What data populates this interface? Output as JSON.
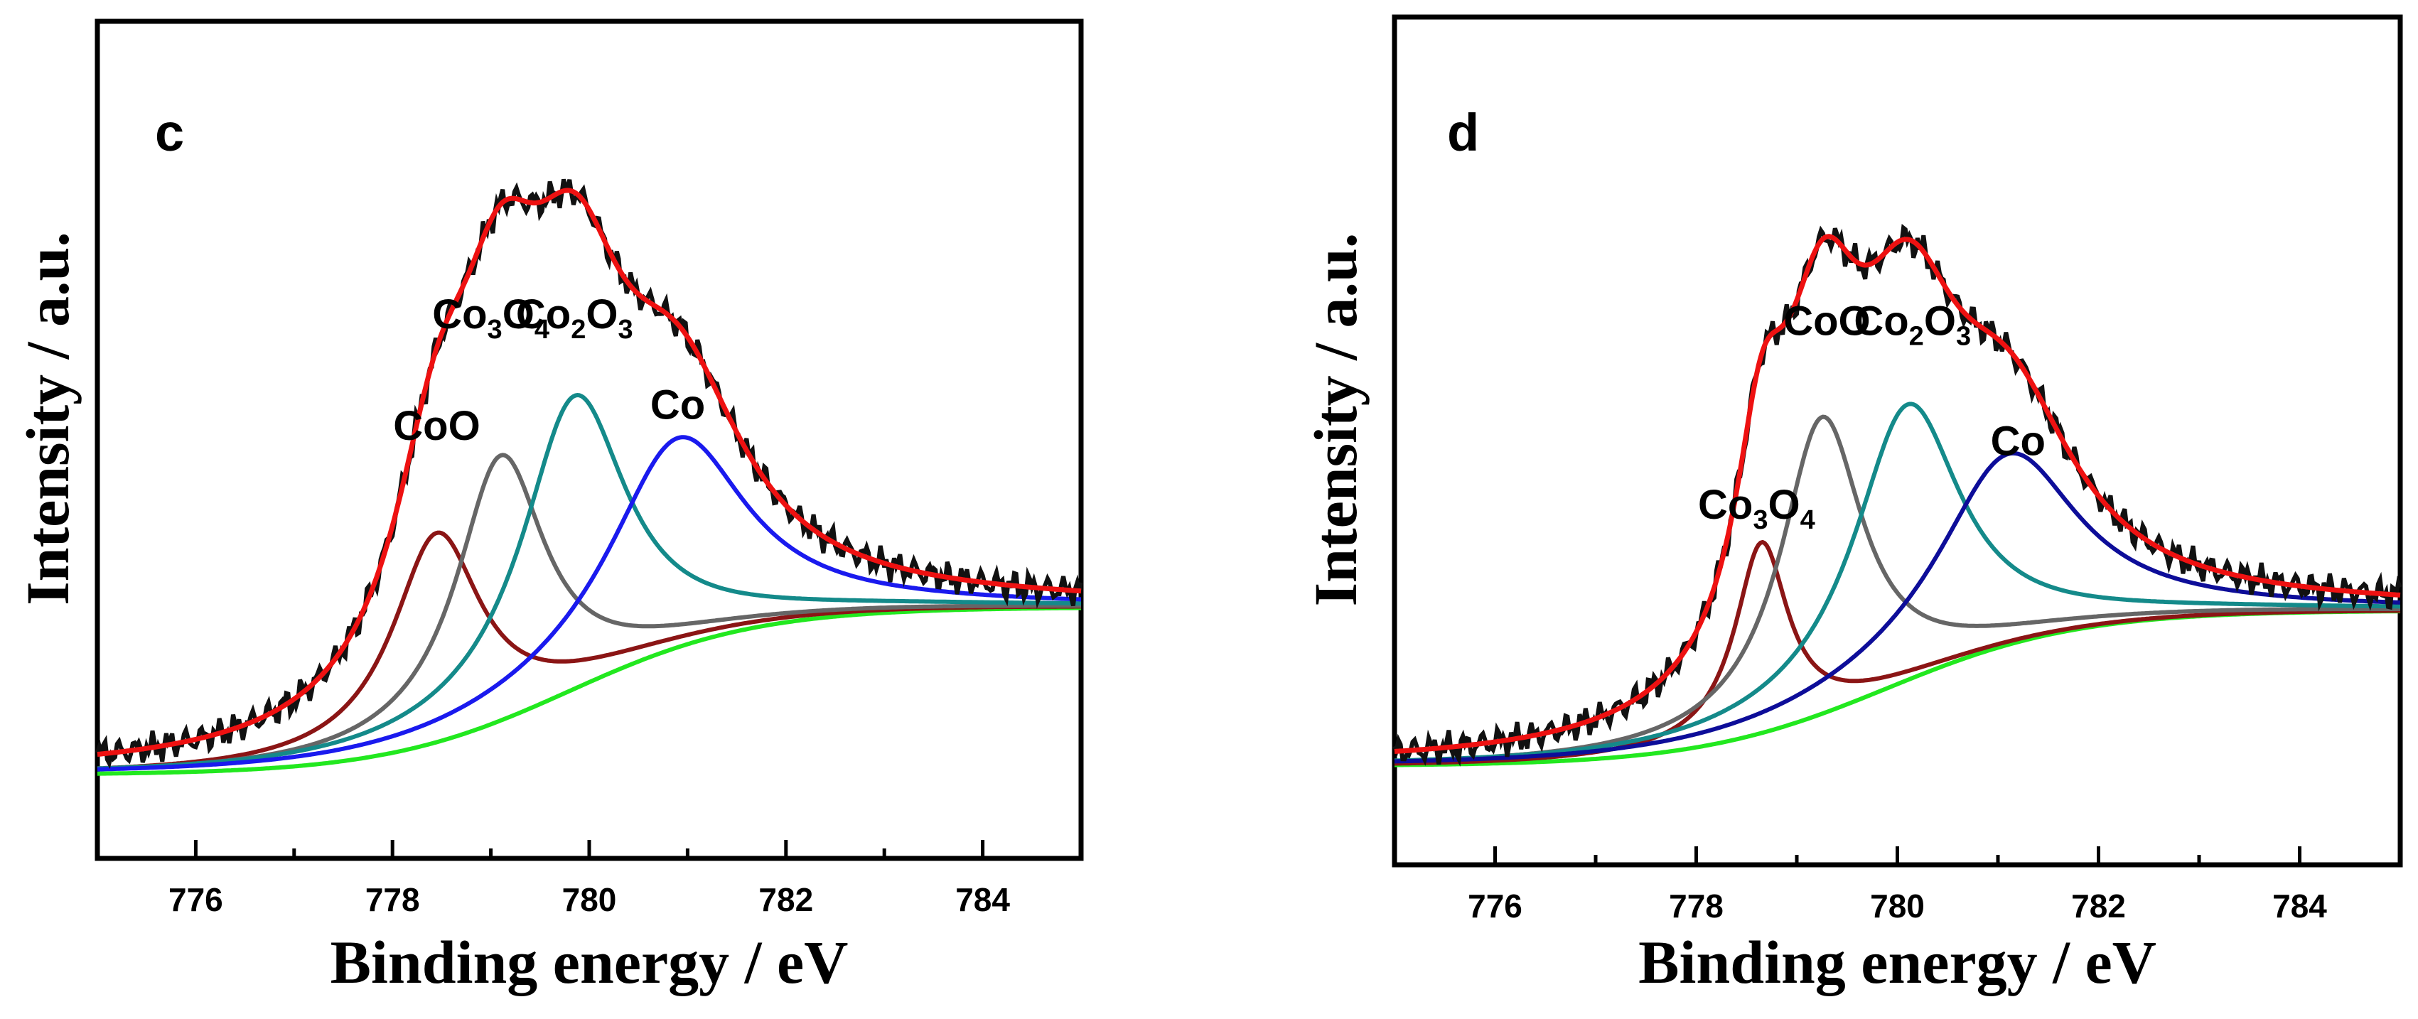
{
  "chart_data": [
    {
      "type": "line",
      "panel_label": "c",
      "xlabel": "Binding energy / eV",
      "ylabel": "Intensity / a.u.",
      "xlim": [
        775,
        785
      ],
      "ylim": [
        -0.12,
        1.08
      ],
      "x_ticks": [
        "776",
        "778",
        "780",
        "782",
        "784"
      ],
      "x_tick_values": [
        776,
        778,
        780,
        782,
        784
      ],
      "baseline": {
        "name": "background",
        "color": "#22e81f",
        "low": 0.0,
        "high": 0.24,
        "center": 779.8,
        "width": 0.95
      },
      "components": [
        {
          "label": "CoO",
          "center": 778.45,
          "height": 0.3,
          "width": 0.55,
          "color": "#8b1515",
          "label_x": 778.45,
          "label_y": 0.48
        },
        {
          "label": "Co3O4",
          "label_main": "Co",
          "label_sub1": "3",
          "label_mid": "O",
          "label_sub2": "4",
          "center": 779.1,
          "height": 0.38,
          "width": 0.55,
          "color": "#666666",
          "label_x": 779.0,
          "label_y": 0.64
        },
        {
          "label": "Co2O3",
          "label_main": "Co",
          "label_sub1": "2",
          "label_mid": "O",
          "label_sub2": "3",
          "center": 779.85,
          "height": 0.42,
          "width": 0.65,
          "color": "#148a8a",
          "label_x": 779.85,
          "label_y": 0.64
        },
        {
          "label": "Co",
          "center": 780.9,
          "height": 0.3,
          "width": 0.85,
          "color": "#1a1aee",
          "label_x": 780.9,
          "label_y": 0.51
        }
      ],
      "experimental": {
        "name": "experimental",
        "color": "#111111"
      },
      "fit": {
        "name": "fitted envelope",
        "color": "#ee1111"
      }
    },
    {
      "type": "line",
      "panel_label": "d",
      "xlabel": "Binding energy / eV",
      "ylabel": "Intensity / a.u.",
      "xlim": [
        775,
        785
      ],
      "ylim": [
        -0.14,
        1.06
      ],
      "x_ticks": [
        "776",
        "778",
        "780",
        "782",
        "784"
      ],
      "x_tick_values": [
        776,
        778,
        780,
        782,
        784
      ],
      "baseline": {
        "name": "background",
        "color": "#22e81f",
        "low": 0.0,
        "high": 0.22,
        "center": 779.9,
        "width": 0.95
      },
      "components": [
        {
          "label": "Co3O4",
          "label_main": "Co",
          "label_sub1": "3",
          "label_mid": "O",
          "label_sub2": "4",
          "center": 778.65,
          "height": 0.27,
          "width": 0.32,
          "color": "#8b1515",
          "label_x": 778.6,
          "label_y": 0.35
        },
        {
          "label": "CoO",
          "center": 779.25,
          "height": 0.42,
          "width": 0.5,
          "color": "#666666",
          "label_x": 779.3,
          "label_y": 0.61
        },
        {
          "label": "Co2O3",
          "label_main": "Co",
          "label_sub1": "2",
          "label_mid": "O",
          "label_sub2": "3",
          "center": 780.1,
          "height": 0.39,
          "width": 0.65,
          "color": "#148a8a",
          "label_x": 780.15,
          "label_y": 0.61
        },
        {
          "label": "Co",
          "center": 781.1,
          "height": 0.27,
          "width": 0.85,
          "color": "#0d0d99",
          "label_x": 781.2,
          "label_y": 0.44
        }
      ],
      "experimental": {
        "name": "experimental",
        "color": "#111111"
      },
      "fit": {
        "name": "fitted envelope",
        "color": "#ee1111"
      }
    }
  ]
}
